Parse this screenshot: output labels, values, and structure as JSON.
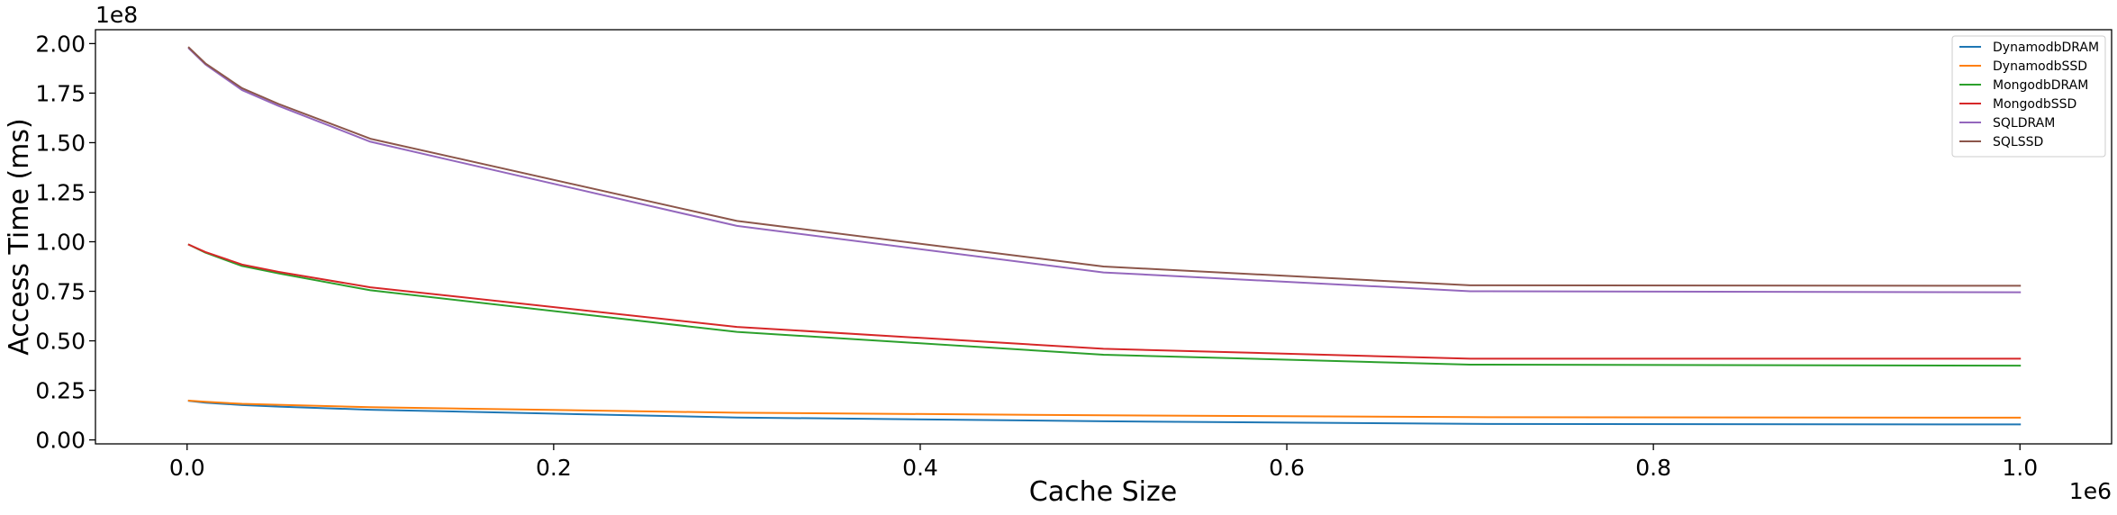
{
  "chart_data": {
    "type": "line",
    "xlabel": "Cache Size",
    "ylabel": "Access Time (ms)",
    "x_offset_label": "1e6",
    "y_offset_label": "1e8",
    "xlim": [
      -0.05,
      1.05
    ],
    "ylim": [
      -0.02,
      2.07
    ],
    "x_ticks": [
      0.0,
      0.2,
      0.4,
      0.6,
      0.8,
      1.0
    ],
    "x_tick_labels": [
      "0.0",
      "0.2",
      "0.4",
      "0.6",
      "0.8",
      "1.0"
    ],
    "y_ticks": [
      0.0,
      0.25,
      0.5,
      0.75,
      1.0,
      1.25,
      1.5,
      1.75,
      2.0
    ],
    "y_tick_labels": [
      "0.00",
      "0.25",
      "0.50",
      "0.75",
      "1.00",
      "1.25",
      "1.50",
      "1.75",
      "2.00"
    ],
    "grid": false,
    "legend_position": "top-right",
    "x": [
      0.001,
      0.01,
      0.03,
      0.05,
      0.1,
      0.3,
      0.5,
      0.7,
      1.0
    ],
    "series": [
      {
        "name": "DynamodbDRAM",
        "color": "#1f77b4",
        "values": [
          0.197,
          0.188,
          0.176,
          0.168,
          0.152,
          0.113,
          0.094,
          0.081,
          0.078
        ]
      },
      {
        "name": "DynamodbSSD",
        "color": "#ff7f0e",
        "values": [
          0.198,
          0.192,
          0.182,
          0.177,
          0.165,
          0.137,
          0.124,
          0.115,
          0.112
        ]
      },
      {
        "name": "MongodbDRAM",
        "color": "#2ca02c",
        "values": [
          0.985,
          0.945,
          0.878,
          0.84,
          0.755,
          0.545,
          0.43,
          0.38,
          0.375
        ]
      },
      {
        "name": "MongodbSSD",
        "color": "#d62728",
        "values": [
          0.985,
          0.948,
          0.885,
          0.848,
          0.77,
          0.57,
          0.46,
          0.41,
          0.41
        ]
      },
      {
        "name": "SQLDRAM",
        "color": "#9467bd",
        "values": [
          1.975,
          1.895,
          1.765,
          1.685,
          1.505,
          1.08,
          0.845,
          0.75,
          0.745
        ]
      },
      {
        "name": "SQLSSD",
        "color": "#8c564b",
        "values": [
          1.98,
          1.9,
          1.775,
          1.695,
          1.52,
          1.105,
          0.875,
          0.78,
          0.778
        ]
      }
    ]
  }
}
